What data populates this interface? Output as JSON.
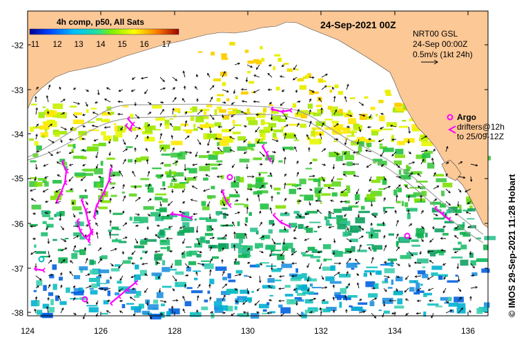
{
  "legend": {
    "title": "4h comp, p50, All Sats",
    "colorbar_ticks": [
      "11",
      "12",
      "13",
      "14",
      "15",
      "16",
      "17"
    ]
  },
  "header": {
    "date": "24-Sep-2021 00Z"
  },
  "currents_info": {
    "line1": "NRT00 GSL",
    "line2": "24-Sep 00:00Z",
    "line3": "0.5m/s (1kt 24h)"
  },
  "markers_legend": {
    "argo": "Argo",
    "drifters_line1": "drifters@12h",
    "drifters_line2": "to 25/09-12Z"
  },
  "axes": {
    "y_ticks": [
      "-32",
      "-33",
      "-34",
      "-35",
      "-36",
      "-37",
      "-38"
    ],
    "x_ticks": [
      "124",
      "126",
      "128",
      "130",
      "132",
      "134",
      "136"
    ]
  },
  "credit": "© IMOS 29-Sep-2021 11:28 Hobart",
  "colors": {
    "land": "#fcc896",
    "ocean": "#ffffff",
    "drifter": "#ff00ff",
    "isobath": "#a0a0a0"
  },
  "sst_scale_degC": [
    11,
    17
  ]
}
